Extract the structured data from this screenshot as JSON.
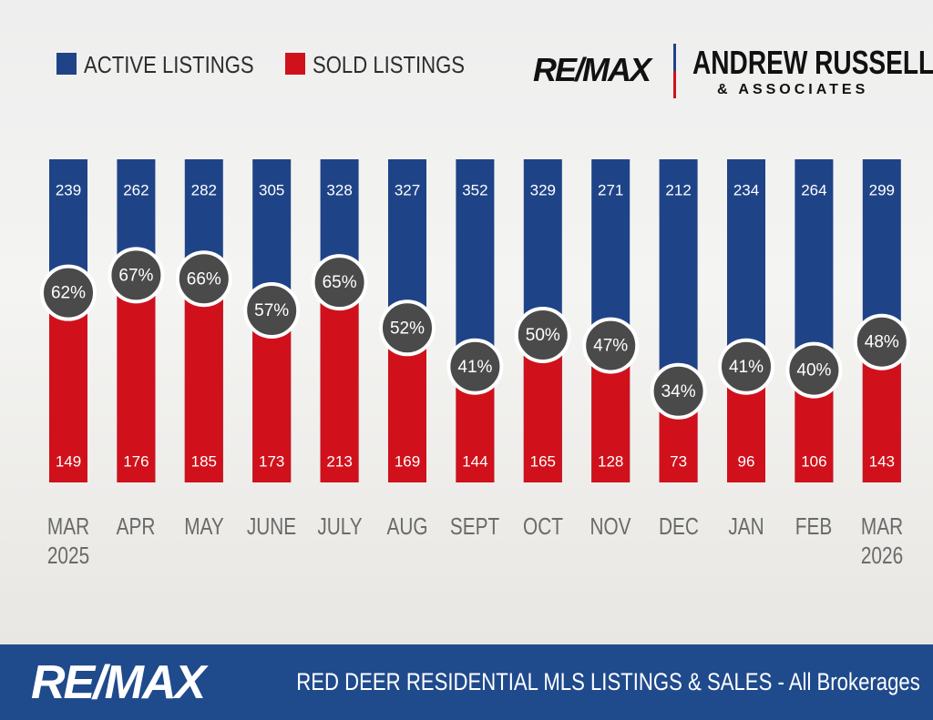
{
  "chart_data": {
    "type": "bar",
    "title": "RED DEER RESIDENTIAL MLS LISTINGS & SALES - All Brokerages",
    "brand": "RE/MAX",
    "team": "ANDREW RUSSELL",
    "team_sub": "& ASSOCIATES",
    "categories": [
      "MAR\n2025",
      "APR",
      "MAY",
      "JUNE",
      "JULY",
      "AUG",
      "SEPT",
      "OCT",
      "NOV",
      "DEC",
      "JAN",
      "FEB",
      "MAR\n2026"
    ],
    "series": [
      {
        "name": "ACTIVE LISTINGS",
        "color": "#1f4387",
        "values": [
          239,
          262,
          282,
          305,
          328,
          327,
          352,
          329,
          271,
          212,
          234,
          264,
          299
        ]
      },
      {
        "name": "SOLD LISTINGS",
        "color": "#d0111b",
        "values": [
          149,
          176,
          185,
          173,
          213,
          169,
          144,
          165,
          128,
          73,
          96,
          106,
          143
        ]
      }
    ],
    "ratio": {
      "color": "#4a4a4a",
      "values": [
        62,
        67,
        66,
        57,
        65,
        52,
        41,
        50,
        47,
        34,
        41,
        40,
        48
      ],
      "value_labels": [
        "62%",
        "67%",
        "66%",
        "57%",
        "65%",
        "52%",
        "41%",
        "50%",
        "47%",
        "34%",
        "41%",
        "40%",
        "48%"
      ]
    }
  }
}
